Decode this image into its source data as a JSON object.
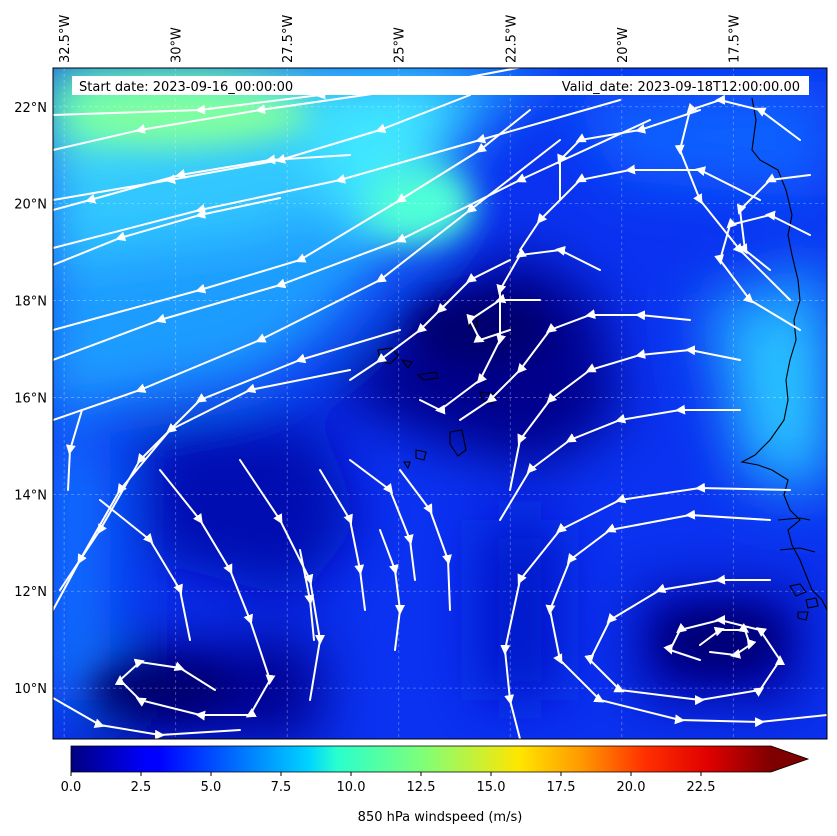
{
  "header": {
    "start_date": "Start date: 2023-09-16_00:00:00",
    "valid_date": "Valid_date: 2023-09-18T12:00:00.00"
  },
  "map": {
    "lon_range": [
      -32.75,
      -15.4
    ],
    "lat_range": [
      8.95,
      22.8
    ],
    "lon_ticks": [
      {
        "value": -32.5,
        "label": "32.5°W"
      },
      {
        "value": -30.0,
        "label": "30°W"
      },
      {
        "value": -27.5,
        "label": "27.5°W"
      },
      {
        "value": -25.0,
        "label": "25°W"
      },
      {
        "value": -22.5,
        "label": "22.5°W"
      },
      {
        "value": -20.0,
        "label": "20°W"
      },
      {
        "value": -17.5,
        "label": "17.5°W"
      }
    ],
    "lat_ticks": [
      {
        "value": 10,
        "label": "10°N"
      },
      {
        "value": 12,
        "label": "12°N"
      },
      {
        "value": 14,
        "label": "14°N"
      },
      {
        "value": 16,
        "label": "16°N"
      },
      {
        "value": 18,
        "label": "18°N"
      },
      {
        "value": 20,
        "label": "20°N"
      },
      {
        "value": 22,
        "label": "22°N"
      }
    ],
    "field": "850 hPa windspeed",
    "streamline_color": "#ffffff"
  },
  "colorbar": {
    "label": "850 hPa windspeed (m/s)",
    "vmin": 0,
    "vmax": 25,
    "extend": "max",
    "colormap": "jet",
    "ticks": [
      {
        "value": 0.0,
        "label": "0.0"
      },
      {
        "value": 2.5,
        "label": "2.5"
      },
      {
        "value": 5.0,
        "label": "5.0"
      },
      {
        "value": 7.5,
        "label": "7.5"
      },
      {
        "value": 10.0,
        "label": "10.0"
      },
      {
        "value": 12.5,
        "label": "12.5"
      },
      {
        "value": 15.0,
        "label": "15.0"
      },
      {
        "value": 17.5,
        "label": "17.5"
      },
      {
        "value": 20.0,
        "label": "20.0"
      },
      {
        "value": 22.5,
        "label": "22.5"
      }
    ]
  }
}
